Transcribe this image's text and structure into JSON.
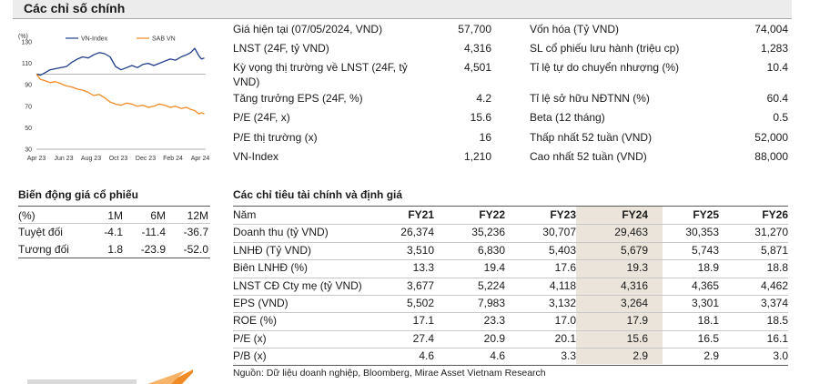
{
  "header": {
    "title": "Các chỉ số chính"
  },
  "key_metrics_left": [
    {
      "label": "Giá hiện tại (07/05/2024, VND)",
      "value": "57,700"
    },
    {
      "label": "LNST (24F, tỷ VND)",
      "value": "4,316"
    },
    {
      "label": "Kỳ vọng thị trường về LNST (24F, tỷ VND)",
      "value": "4,501"
    },
    {
      "label": "Tăng trưởng EPS (24F, %)",
      "value": "4.2"
    },
    {
      "label": "P/E (24F, x)",
      "value": "15.6"
    },
    {
      "label": "P/E thị trường (x)",
      "value": "16"
    },
    {
      "label": "VN-Index",
      "value": "1,210"
    }
  ],
  "key_metrics_right": [
    {
      "label": "Vốn hóa (Tỷ VND)",
      "value": "74,004"
    },
    {
      "label": "SL cổ phiếu lưu hành (triệu cp)",
      "value": "1,283"
    },
    {
      "label": "Tỉ lệ tự do chuyển nhượng (%)",
      "value": "10.4"
    },
    {
      "label": "Tỉ lệ sở hữu NĐTNN (%)",
      "value": "60.4"
    },
    {
      "label": "Beta (12 tháng)",
      "value": "0.5"
    },
    {
      "label": "Thấp nhất 52 tuần (VND)",
      "value": "52,000"
    },
    {
      "label": "Cao nhất 52 tuần (VND)",
      "value": "88,000"
    }
  ],
  "price_perf": {
    "title": "Biến động giá cổ phiếu",
    "columns": [
      "(%)",
      "1M",
      "6M",
      "12M"
    ],
    "rows": [
      [
        "Tuyệt đối",
        "-4.1",
        "-11.4",
        "-36.7"
      ],
      [
        "Tương đối",
        "1.8",
        "-23.9",
        "-52.0"
      ]
    ]
  },
  "fin_table": {
    "title": "Các chỉ tiêu tài chính và định giá",
    "columns": [
      "Năm",
      "FY21",
      "FY22",
      "FY23",
      "FY24",
      "FY25",
      "FY26"
    ],
    "rows": [
      [
        "Doanh thu (tỷ VND)",
        "26,374",
        "35,236",
        "30,707",
        "29,463",
        "30,353",
        "31,270"
      ],
      [
        "LNHĐ (Tỷ VND)",
        "3,510",
        "6,830",
        "5,403",
        "5,679",
        "5,743",
        "5,871"
      ],
      [
        "Biên LNHĐ (%)",
        "13.3",
        "19.4",
        "17.6",
        "19.3",
        "18.9",
        "18.8"
      ],
      [
        "LNST CĐ Cty mẹ (tỷ VND)",
        "3,677",
        "5,224",
        "4,118",
        "4,316",
        "4,365",
        "4,462"
      ],
      [
        "EPS (VND)",
        "5,502",
        "7,983",
        "3,132",
        "3,264",
        "3,301",
        "3,374"
      ],
      [
        "ROE (%)",
        "17.1",
        "23.3",
        "17.0",
        "17.9",
        "18.1",
        "18.5"
      ],
      [
        "P/E (x)",
        "27.4",
        "20.9",
        "20.1",
        "15.6",
        "16.5",
        "16.1"
      ],
      [
        "P/B (x)",
        "4.6",
        "4.6",
        "3.3",
        "2.9",
        "2.9",
        "3.0"
      ]
    ],
    "source": "Nguồn: Dữ liệu doanh nghiệp, Bloomberg, Mirae Asset Vietnam Research"
  },
  "chart_data": {
    "type": "line",
    "title": "",
    "ylabel": "(%)",
    "xlabel": "",
    "ylim": [
      30,
      130
    ],
    "yticks": [
      30,
      50,
      70,
      90,
      110,
      130
    ],
    "x_tick_labels": [
      "Apr 23",
      "Jun 23",
      "Aug 23",
      "Oct 23",
      "Dec 23",
      "Feb 24",
      "Apr 24"
    ],
    "xlim": [
      0,
      12.4
    ],
    "x_tick_positions": [
      0,
      2,
      4,
      6,
      8,
      10,
      12
    ],
    "reference_line": 100,
    "legend_position": "top-center",
    "series": [
      {
        "name": "VN-Index",
        "color": "#1f3d8a",
        "x": [
          0,
          0.3,
          0.6,
          1.0,
          1.4,
          1.8,
          2.2,
          2.6,
          3.0,
          3.4,
          3.8,
          4.2,
          4.6,
          5.0,
          5.4,
          5.8,
          6.2,
          6.6,
          7.0,
          7.4,
          7.8,
          8.2,
          8.6,
          9.0,
          9.4,
          9.8,
          10.2,
          10.6,
          11.0,
          11.3,
          11.6,
          11.9,
          12.1,
          12.3
        ],
        "values": [
          100,
          99,
          101,
          104,
          105,
          106,
          107,
          111,
          114,
          116,
          115,
          118,
          120,
          119,
          116,
          107,
          104,
          106,
          108,
          106,
          109,
          110,
          108,
          110,
          112,
          114,
          113,
          116,
          118,
          120,
          124,
          117,
          114,
          115
        ]
      },
      {
        "name": "SAB VN",
        "color": "#f08a24",
        "x": [
          0,
          0.3,
          0.6,
          1.0,
          1.4,
          1.8,
          2.2,
          2.6,
          3.0,
          3.4,
          3.8,
          4.2,
          4.6,
          5.0,
          5.4,
          5.8,
          6.2,
          6.6,
          7.0,
          7.4,
          7.8,
          8.2,
          8.6,
          9.0,
          9.4,
          9.8,
          10.2,
          10.6,
          11.0,
          11.3,
          11.6,
          11.9,
          12.1,
          12.3
        ],
        "values": [
          100,
          95,
          94,
          92,
          93,
          91,
          89,
          88,
          86,
          85,
          83,
          80,
          81,
          78,
          74,
          72,
          71,
          73,
          72,
          70,
          71,
          69,
          70,
          72,
          71,
          69,
          70,
          68,
          69,
          67,
          66,
          63,
          64,
          63
        ]
      }
    ]
  }
}
